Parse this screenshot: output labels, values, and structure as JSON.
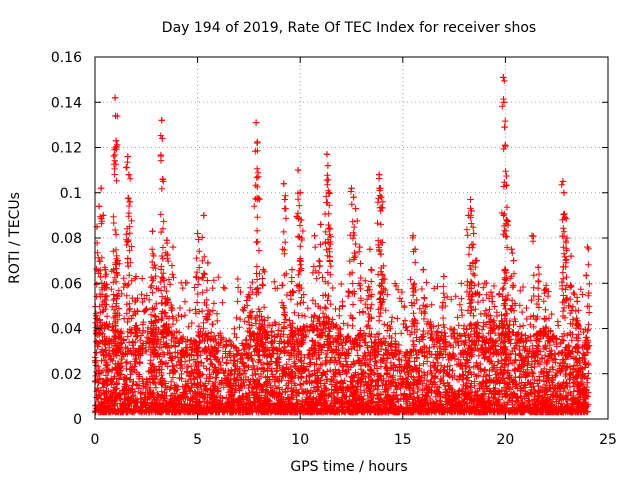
{
  "chart_data": {
    "type": "scatter",
    "title": "Day 194 of 2019, Rate Of TEC Index for receiver shos",
    "xlabel": "GPS time / hours",
    "ylabel": "ROTI / TECUs",
    "xlim": [
      0,
      25
    ],
    "ylim": [
      0,
      0.16
    ],
    "xticks": [
      0,
      5,
      10,
      15,
      20,
      25
    ],
    "xtick_labels": [
      "0",
      "5",
      "10",
      "15",
      "20",
      "25"
    ],
    "yticks": [
      0,
      0.02,
      0.04,
      0.06,
      0.08,
      0.1,
      0.12,
      0.14,
      0.16
    ],
    "ytick_labels": [
      "0",
      "0.02",
      "0.04",
      "0.06",
      "0.08",
      "0.1",
      "0.12",
      "0.14",
      "0.16"
    ],
    "grid": true,
    "marker": "+",
    "color": "#ff0000",
    "series": [
      {
        "name": "ROTI",
        "description": "dense cloud of ROTI values mostly between 0.003 and 0.035 TECU/s from 0 to 24 h with sparse spikes",
        "peaks": [
          {
            "x": 0.1,
            "y": 0.085
          },
          {
            "x": 0.2,
            "y": 0.094
          },
          {
            "x": 0.3,
            "y": 0.102
          },
          {
            "x": 0.4,
            "y": 0.09
          },
          {
            "x": 0.5,
            "y": 0.066
          },
          {
            "x": 0.9,
            "y": 0.066
          },
          {
            "x": 0.98,
            "y": 0.142
          },
          {
            "x": 1.0,
            "y": 0.134
          },
          {
            "x": 1.03,
            "y": 0.123
          },
          {
            "x": 1.1,
            "y": 0.07
          },
          {
            "x": 1.6,
            "y": 0.116
          },
          {
            "x": 1.65,
            "y": 0.108
          },
          {
            "x": 1.7,
            "y": 0.096
          },
          {
            "x": 2.0,
            "y": 0.063
          },
          {
            "x": 2.8,
            "y": 0.083
          },
          {
            "x": 2.9,
            "y": 0.068
          },
          {
            "x": 3.25,
            "y": 0.132
          },
          {
            "x": 3.28,
            "y": 0.124
          },
          {
            "x": 3.3,
            "y": 0.106
          },
          {
            "x": 3.5,
            "y": 0.079
          },
          {
            "x": 3.8,
            "y": 0.076
          },
          {
            "x": 5.0,
            "y": 0.082
          },
          {
            "x": 5.3,
            "y": 0.09
          },
          {
            "x": 5.5,
            "y": 0.069
          },
          {
            "x": 7.5,
            "y": 0.055
          },
          {
            "x": 7.85,
            "y": 0.131
          },
          {
            "x": 7.9,
            "y": 0.122
          },
          {
            "x": 7.95,
            "y": 0.107
          },
          {
            "x": 8.2,
            "y": 0.066
          },
          {
            "x": 9.2,
            "y": 0.104
          },
          {
            "x": 9.25,
            "y": 0.097
          },
          {
            "x": 9.6,
            "y": 0.066
          },
          {
            "x": 9.9,
            "y": 0.11
          },
          {
            "x": 10.0,
            "y": 0.1
          },
          {
            "x": 10.05,
            "y": 0.088
          },
          {
            "x": 10.7,
            "y": 0.081
          },
          {
            "x": 11.0,
            "y": 0.086
          },
          {
            "x": 11.3,
            "y": 0.117
          },
          {
            "x": 11.35,
            "y": 0.112
          },
          {
            "x": 11.4,
            "y": 0.1
          },
          {
            "x": 11.45,
            "y": 0.084
          },
          {
            "x": 12.5,
            "y": 0.102
          },
          {
            "x": 12.6,
            "y": 0.098
          },
          {
            "x": 12.7,
            "y": 0.093
          },
          {
            "x": 12.9,
            "y": 0.076
          },
          {
            "x": 13.4,
            "y": 0.075
          },
          {
            "x": 13.85,
            "y": 0.108
          },
          {
            "x": 13.9,
            "y": 0.102
          },
          {
            "x": 13.95,
            "y": 0.098
          },
          {
            "x": 14.0,
            "y": 0.078
          },
          {
            "x": 15.5,
            "y": 0.081
          },
          {
            "x": 15.6,
            "y": 0.075
          },
          {
            "x": 16.0,
            "y": 0.066
          },
          {
            "x": 17.0,
            "y": 0.063
          },
          {
            "x": 18.2,
            "y": 0.09
          },
          {
            "x": 18.3,
            "y": 0.097
          },
          {
            "x": 18.35,
            "y": 0.092
          },
          {
            "x": 18.45,
            "y": 0.082
          },
          {
            "x": 18.6,
            "y": 0.07
          },
          {
            "x": 19.0,
            "y": 0.06
          },
          {
            "x": 19.3,
            "y": 0.056
          },
          {
            "x": 19.9,
            "y": 0.151
          },
          {
            "x": 19.93,
            "y": 0.14
          },
          {
            "x": 19.96,
            "y": 0.129
          },
          {
            "x": 20.0,
            "y": 0.121
          },
          {
            "x": 20.05,
            "y": 0.088
          },
          {
            "x": 20.3,
            "y": 0.075
          },
          {
            "x": 20.4,
            "y": 0.07
          },
          {
            "x": 21.3,
            "y": 0.081
          },
          {
            "x": 21.6,
            "y": 0.067
          },
          {
            "x": 21.9,
            "y": 0.057
          },
          {
            "x": 22.8,
            "y": 0.105
          },
          {
            "x": 22.85,
            "y": 0.1
          },
          {
            "x": 22.9,
            "y": 0.089
          },
          {
            "x": 23.0,
            "y": 0.08
          },
          {
            "x": 23.2,
            "y": 0.072
          },
          {
            "x": 23.5,
            "y": 0.052
          },
          {
            "x": 24.0,
            "y": 0.076
          }
        ]
      }
    ]
  }
}
